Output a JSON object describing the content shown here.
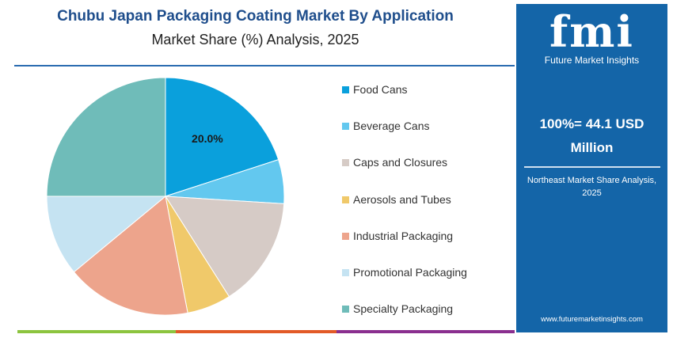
{
  "title": "Chubu Japan Packaging Coating Market By Application",
  "subtitle": "Market Share (%) Analysis, 2025",
  "chart_data": {
    "type": "pie",
    "title": "Chubu Japan Packaging Coating Market By Application",
    "subtitle": "Market Share (%) Analysis, 2025",
    "categories": [
      "Food Cans",
      "Beverage Cans",
      "Caps and Closures",
      "Aerosols and Tubes",
      "Industrial Packaging",
      "Promotional Packaging",
      "Specialty Packaging"
    ],
    "values": [
      20,
      6,
      15,
      6,
      17,
      11,
      25
    ],
    "colors": [
      "#0aa0dc",
      "#63c8ef",
      "#d6cbc6",
      "#f0c96a",
      "#eda48c",
      "#c5e3f2",
      "#6fbcb9"
    ],
    "data_labels": [
      "20.0%"
    ],
    "legend_placement": "right"
  },
  "panel": {
    "logo": "fmi",
    "logo_sub": "Future Market Insights",
    "total": "100%= 44.1 USD Million",
    "note": "Northeast Market Share Analysis, 2025",
    "url": "www.futuremarketinsights.com",
    "color": "#1465a8"
  }
}
